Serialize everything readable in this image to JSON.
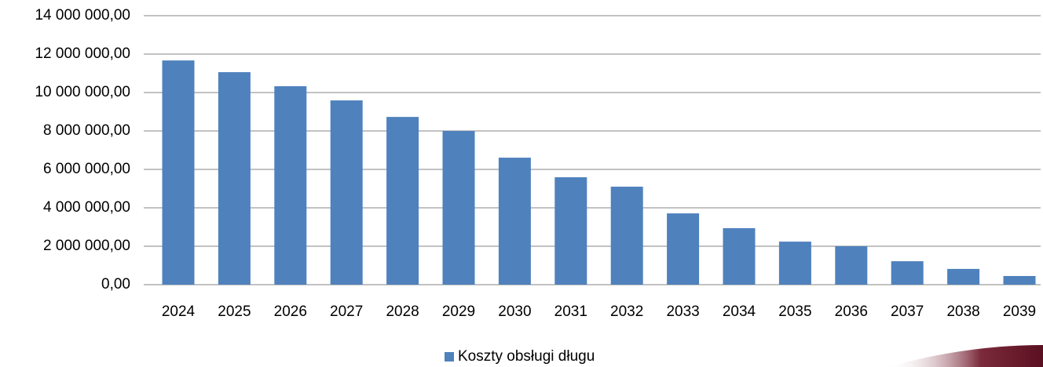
{
  "chart_data": {
    "type": "bar",
    "categories": [
      "2024",
      "2025",
      "2026",
      "2027",
      "2028",
      "2029",
      "2030",
      "2031",
      "2032",
      "2033",
      "2034",
      "2035",
      "2036",
      "2037",
      "2038",
      "2039"
    ],
    "series": [
      {
        "name": "Koszty obsługi długu",
        "color": "#4f81bd",
        "values": [
          11670000,
          11060000,
          10330000,
          9590000,
          8730000,
          8000000,
          6610000,
          5590000,
          5100000,
          3710000,
          2940000,
          2240000,
          2000000,
          1220000,
          820000,
          450000
        ]
      }
    ],
    "ylim": [
      0,
      14000000
    ],
    "yticks": [
      {
        "value": 0,
        "label": "0,00"
      },
      {
        "value": 2000000,
        "label": "2 000 000,00"
      },
      {
        "value": 4000000,
        "label": "4 000 000,00"
      },
      {
        "value": 6000000,
        "label": "6 000 000,00"
      },
      {
        "value": 8000000,
        "label": "8 000 000,00"
      },
      {
        "value": 10000000,
        "label": "10 000 000,00"
      },
      {
        "value": 12000000,
        "label": "12 000 000,00"
      },
      {
        "value": 14000000,
        "label": "14 000 000,00"
      }
    ],
    "grid": true,
    "legend": "bottom"
  }
}
